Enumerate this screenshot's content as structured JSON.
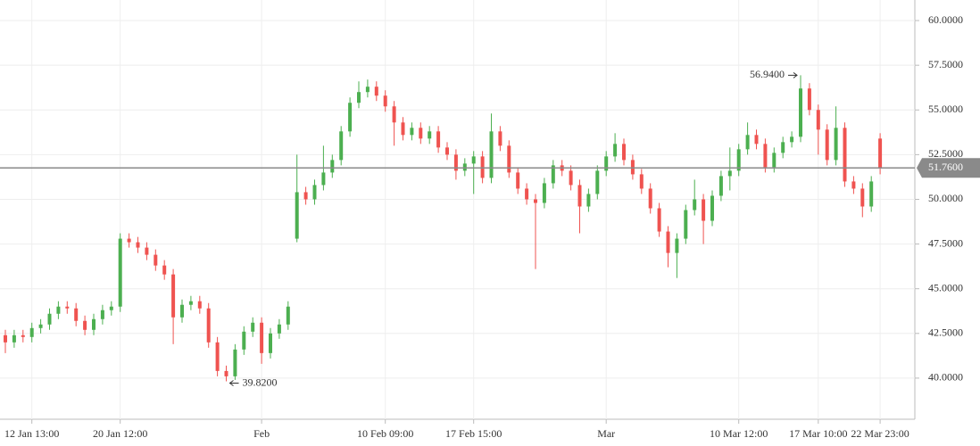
{
  "chart_data": {
    "type": "candlestick",
    "categories": [
      null,
      null,
      null,
      "12 Jan 13:00",
      null,
      null,
      null,
      null,
      null,
      null,
      null,
      null,
      null,
      "20 Jan 12:00",
      null,
      null,
      null,
      null,
      null,
      null,
      null,
      null,
      null,
      null,
      null,
      null,
      null,
      null,
      null,
      "Feb",
      null,
      null,
      null,
      null,
      null,
      null,
      null,
      null,
      null,
      null,
      null,
      null,
      null,
      "10 Feb 09:00",
      null,
      null,
      null,
      null,
      null,
      null,
      null,
      null,
      null,
      "17 Feb 15:00",
      null,
      null,
      null,
      null,
      null,
      null,
      null,
      null,
      null,
      null,
      null,
      null,
      null,
      null,
      "Mar",
      null,
      null,
      null,
      null,
      null,
      null,
      null,
      null,
      null,
      null,
      null,
      null,
      null,
      null,
      "10 Mar 12:00",
      null,
      null,
      null,
      null,
      null,
      null,
      null,
      null,
      "17 Mar 10:00",
      null,
      null,
      null,
      null,
      null,
      null,
      "22 Mar 23:00"
    ],
    "series": [
      {
        "up_color": "#4caf50",
        "down_color": "#ef5350",
        "open": [
          42.4,
          42.0,
          42.4,
          42.3,
          42.8,
          43.0,
          43.6,
          44.0,
          43.9,
          43.2,
          42.7,
          43.3,
          43.8,
          44.0,
          47.8,
          47.6,
          47.3,
          46.9,
          46.3,
          45.8,
          43.4,
          44.1,
          44.3,
          43.9,
          42.0,
          40.4,
          40.1,
          41.6,
          42.6,
          43.1,
          41.4,
          42.5,
          43.0,
          47.8,
          50.4,
          50.0,
          50.8,
          51.5,
          52.2,
          53.8,
          55.4,
          56.0,
          56.3,
          55.8,
          55.2,
          54.3,
          53.6,
          54.0,
          53.4,
          53.8,
          52.9,
          52.5,
          51.6,
          52.0,
          52.4,
          51.2,
          53.8,
          53.0,
          51.5,
          50.6,
          50.0,
          49.8,
          50.9,
          51.9,
          51.6,
          50.8,
          49.6,
          50.3,
          51.6,
          52.4,
          53.1,
          52.2,
          51.4,
          50.6,
          49.5,
          48.2,
          47.0,
          47.8,
          49.4,
          50.0,
          48.8,
          50.2,
          51.3,
          51.6,
          52.8,
          53.6,
          53.1,
          51.8,
          52.6,
          53.2,
          53.5,
          56.2,
          55.0,
          53.9,
          52.2,
          54.0,
          51.0,
          50.6,
          49.6,
          53.4
        ],
        "high": [
          42.7,
          42.7,
          42.7,
          43.1,
          43.3,
          43.9,
          44.3,
          44.3,
          44.2,
          43.5,
          43.6,
          44.1,
          44.3,
          48.1,
          48.1,
          47.9,
          47.6,
          47.2,
          46.6,
          46.1,
          44.4,
          44.6,
          44.6,
          44.2,
          42.3,
          40.7,
          41.9,
          42.9,
          43.4,
          43.4,
          42.8,
          43.3,
          44.3,
          52.5,
          50.7,
          51.1,
          53.0,
          52.5,
          54.1,
          55.7,
          56.6,
          56.7,
          56.6,
          56.1,
          55.5,
          54.6,
          54.3,
          54.3,
          54.1,
          54.1,
          53.2,
          52.8,
          52.3,
          52.7,
          52.7,
          54.8,
          54.1,
          53.3,
          51.8,
          50.9,
          50.3,
          51.2,
          52.2,
          52.2,
          51.9,
          51.1,
          50.6,
          51.9,
          52.7,
          53.7,
          53.4,
          52.5,
          51.7,
          50.9,
          49.8,
          48.5,
          48.1,
          49.7,
          51.1,
          50.3,
          50.5,
          51.6,
          52.9,
          53.1,
          54.3,
          53.9,
          53.4,
          52.9,
          53.5,
          53.8,
          56.94,
          56.5,
          55.3,
          54.2,
          55.2,
          54.3,
          51.3,
          50.9,
          51.3,
          53.7
        ],
        "low": [
          41.4,
          41.7,
          42.0,
          42.0,
          42.5,
          42.7,
          43.3,
          43.6,
          42.9,
          42.4,
          42.4,
          43.0,
          43.5,
          43.7,
          47.3,
          47.0,
          46.6,
          46.0,
          45.5,
          41.9,
          43.1,
          43.8,
          43.6,
          41.7,
          40.1,
          39.82,
          39.9,
          41.3,
          42.3,
          40.8,
          41.1,
          42.2,
          42.7,
          47.6,
          49.7,
          49.7,
          50.5,
          51.2,
          51.9,
          53.5,
          55.1,
          55.7,
          55.5,
          54.9,
          53.0,
          53.3,
          53.3,
          53.1,
          53.1,
          52.6,
          52.2,
          51.1,
          51.3,
          50.3,
          50.9,
          50.9,
          52.7,
          51.2,
          50.3,
          49.7,
          46.1,
          49.5,
          50.6,
          51.3,
          50.5,
          48.1,
          49.3,
          50.0,
          51.3,
          52.1,
          51.9,
          51.1,
          50.3,
          49.2,
          47.9,
          46.2,
          45.6,
          47.5,
          49.1,
          47.5,
          48.5,
          49.9,
          50.5,
          51.3,
          52.5,
          52.8,
          51.5,
          51.5,
          52.3,
          52.9,
          53.2,
          54.7,
          52.5,
          51.9,
          51.9,
          50.7,
          50.3,
          49.0,
          49.3,
          51.4
        ],
        "close": [
          42.0,
          42.4,
          42.3,
          42.8,
          43.0,
          43.6,
          44.0,
          43.9,
          43.2,
          42.7,
          43.3,
          43.8,
          44.0,
          47.8,
          47.6,
          47.3,
          46.9,
          46.3,
          45.8,
          43.4,
          44.1,
          44.3,
          43.9,
          42.0,
          40.4,
          40.1,
          41.6,
          42.6,
          43.1,
          41.4,
          42.5,
          43.0,
          44.0,
          50.4,
          50.0,
          50.8,
          51.5,
          52.2,
          53.8,
          55.4,
          56.0,
          56.3,
          55.8,
          55.2,
          54.3,
          53.6,
          54.0,
          53.4,
          53.8,
          52.9,
          52.5,
          51.6,
          52.0,
          52.4,
          51.2,
          53.8,
          53.0,
          51.5,
          50.6,
          50.0,
          49.8,
          50.9,
          51.9,
          51.6,
          50.8,
          49.6,
          50.3,
          51.6,
          52.4,
          53.1,
          52.2,
          51.4,
          50.6,
          49.5,
          48.2,
          47.0,
          47.8,
          49.4,
          50.0,
          48.8,
          50.2,
          51.3,
          51.6,
          52.8,
          53.6,
          53.1,
          51.8,
          52.6,
          53.2,
          53.5,
          56.2,
          55.0,
          53.9,
          52.2,
          54.0,
          51.0,
          50.6,
          49.6,
          51.0,
          51.76
        ]
      }
    ],
    "high_label": "56.9400",
    "low_label": "39.8200",
    "last_price": {
      "value": 51.76,
      "label": "51.7600"
    },
    "ylim": [
      37.7,
      61.15
    ],
    "yticks": [
      {
        "value": 40,
        "label": "40.0000"
      },
      {
        "value": 42.5,
        "label": "42.5000"
      },
      {
        "value": 45,
        "label": "45.0000"
      },
      {
        "value": 47.5,
        "label": "47.5000"
      },
      {
        "value": 50,
        "label": "50.0000"
      },
      {
        "value": 52.5,
        "label": "52.5000"
      },
      {
        "value": 55,
        "label": "55.0000"
      },
      {
        "value": 57.5,
        "label": "57.5000"
      },
      {
        "value": 60,
        "label": "60.0000"
      }
    ],
    "grid": true
  }
}
